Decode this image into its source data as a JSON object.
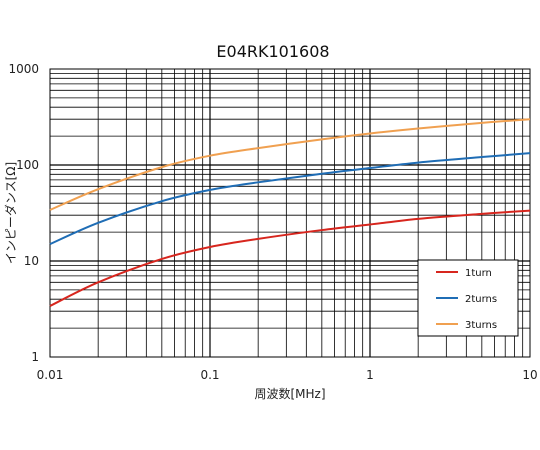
{
  "chart_data": {
    "type": "line",
    "title": "E04RK101608",
    "xlabel": "周波数[MHz]",
    "ylabel": "インピーダンス[Ω]",
    "x_scale": "log",
    "y_scale": "log",
    "xlim": [
      0.01,
      10
    ],
    "ylim": [
      1,
      1000
    ],
    "x_ticks": [
      "0.01",
      "0.1",
      "1",
      "10"
    ],
    "y_ticks": [
      "1",
      "10",
      "100",
      "1000"
    ],
    "grid": true,
    "legend_position": "bottom-right",
    "series": [
      {
        "name": "1turn",
        "color": "#d7261e",
        "points": [
          [
            0.01,
            3.4
          ],
          [
            0.02,
            6.0
          ],
          [
            0.05,
            10.5
          ],
          [
            0.1,
            14.0
          ],
          [
            0.2,
            17.0
          ],
          [
            0.5,
            21.0
          ],
          [
            1,
            24.0
          ],
          [
            2,
            27.5
          ],
          [
            5,
            31.0
          ],
          [
            10,
            33.5
          ]
        ]
      },
      {
        "name": "2turns",
        "color": "#1f6db5",
        "points": [
          [
            0.01,
            15.0
          ],
          [
            0.02,
            25.0
          ],
          [
            0.05,
            42.0
          ],
          [
            0.1,
            55.0
          ],
          [
            0.2,
            66.0
          ],
          [
            0.5,
            81.0
          ],
          [
            1,
            93.0
          ],
          [
            2,
            106.0
          ],
          [
            5,
            121.0
          ],
          [
            10,
            133.0
          ]
        ]
      },
      {
        "name": "3turns",
        "color": "#f0a050",
        "points": [
          [
            0.01,
            34.0
          ],
          [
            0.02,
            56.0
          ],
          [
            0.05,
            95.0
          ],
          [
            0.1,
            125.0
          ],
          [
            0.2,
            150.0
          ],
          [
            0.5,
            185.0
          ],
          [
            1,
            213.0
          ],
          [
            2,
            240.0
          ],
          [
            5,
            275.0
          ],
          [
            10,
            300.0
          ]
        ]
      }
    ]
  }
}
